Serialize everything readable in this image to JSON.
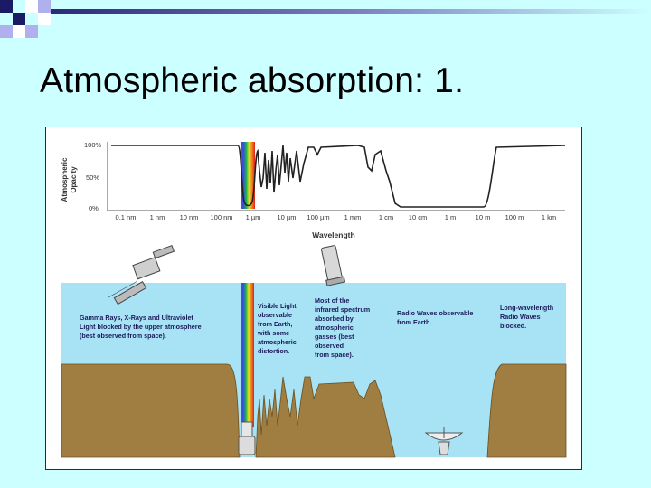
{
  "slide": {
    "title": "Atmospheric absorption: 1."
  },
  "diagram": {
    "y_axis_label_line1": "Atmospheric",
    "y_axis_label_line2": "Opacity",
    "y_ticks": [
      "100%",
      "50%",
      "0%"
    ],
    "x_ticks": [
      "0.1 nm",
      "1 nm",
      "10 nm",
      "100 nm",
      "1 µm",
      "10 µm",
      "100 µm",
      "1 mm",
      "1 cm",
      "10 cm",
      "1 m",
      "10 m",
      "100 m",
      "1 km"
    ],
    "x_axis_label": "Wavelength",
    "annotations": {
      "gamma": [
        "Gamma Rays, X-Rays and Ultraviolet",
        "Light blocked by the upper atmosphere",
        "(best observed from space)."
      ],
      "visible": [
        "Visible Light",
        "observable",
        "from Earth,",
        "with some",
        "atmospheric",
        "distortion."
      ],
      "infrared": [
        "Most of the",
        "infrared spectrum",
        "absorbed by",
        "atmospheric",
        "gasses (best",
        "observed",
        "from space)."
      ],
      "radio": [
        "Radio Waves observable",
        "from Earth."
      ],
      "longwave": [
        "Long-wavelength",
        "Radio Waves",
        "blocked."
      ]
    },
    "colors": {
      "sky": "#a8e2f5",
      "ground": "#a07d40",
      "curve": "#222222"
    },
    "icons": [
      "satellite-icon",
      "space-telescope-icon",
      "ground-telescope-icon",
      "radio-dish-icon"
    ]
  }
}
